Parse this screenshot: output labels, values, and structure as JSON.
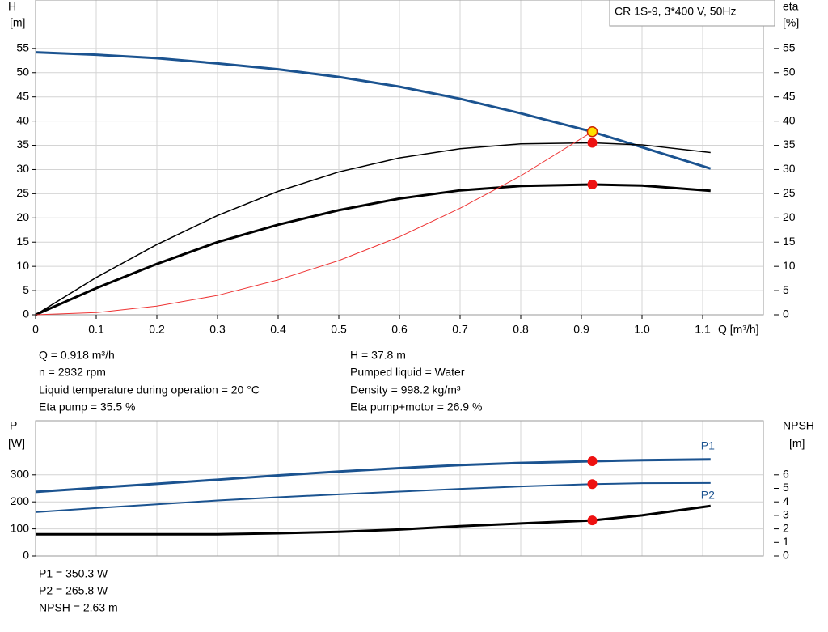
{
  "chart_data": [
    {
      "type": "line",
      "title": "CR 1S-9, 3*400 V, 50Hz",
      "y_label": [
        "H",
        "[m]"
      ],
      "y2_label": [
        "eta",
        "[%]"
      ],
      "x_label": "Q [m³/h]",
      "xlim": [
        0,
        1.2
      ],
      "xticks": [
        0,
        0.1,
        0.2,
        0.3,
        0.4,
        0.5,
        0.6,
        0.7,
        0.8,
        0.9,
        {
          "value": 1.0,
          "label": "1.0"
        },
        1.1
      ],
      "ylim": [
        0,
        65
      ],
      "yticks": [
        0,
        5,
        10,
        15,
        20,
        25,
        30,
        35,
        40,
        45,
        50,
        55
      ],
      "y2lim": [
        0,
        65
      ],
      "y2ticks": [
        0,
        5,
        10,
        15,
        20,
        25,
        30,
        35,
        40,
        45,
        50,
        55
      ],
      "grid": true,
      "duty_x": 0.918,
      "series": [
        {
          "color": "#1b5390",
          "line_width": 3,
          "marker_color": "#ffe000",
          "x": [
            0,
            0.1,
            0.2,
            0.3,
            0.4,
            0.5,
            0.6,
            0.7,
            0.8,
            0.918,
            1.0,
            1.113
          ],
          "values": [
            54.2,
            53.7,
            53,
            51.9,
            50.7,
            49.1,
            47.1,
            44.6,
            41.6,
            37.8,
            34.6,
            30.2
          ]
        },
        {
          "color": "#000000",
          "line_width": 1.5,
          "axis": "y2",
          "marker_color": "#ee1111",
          "x": [
            0,
            0.1,
            0.2,
            0.3,
            0.4,
            0.5,
            0.6,
            0.7,
            0.8,
            0.918,
            1.0,
            1.113
          ],
          "values": [
            0,
            7.7,
            14.5,
            20.5,
            25.5,
            29.5,
            32.4,
            34.3,
            35.3,
            35.5,
            35.1,
            33.5
          ]
        },
        {
          "color": "#000000",
          "line_width": 3,
          "axis": "y2",
          "marker_color": "#ee1111",
          "x": [
            0,
            0.1,
            0.2,
            0.3,
            0.4,
            0.5,
            0.6,
            0.7,
            0.8,
            0.918,
            1.0,
            1.113
          ],
          "values": [
            0,
            5.5,
            10.5,
            15,
            18.6,
            21.6,
            24,
            25.7,
            26.6,
            26.9,
            26.7,
            25.6
          ]
        },
        {
          "color": "#ee3333",
          "line_width": 1,
          "x": [
            0,
            0.1,
            0.2,
            0.3,
            0.4,
            0.5,
            0.6,
            0.7,
            0.8,
            0.918
          ],
          "values": [
            0,
            0.45,
            1.8,
            4,
            7.2,
            11.2,
            16.1,
            22,
            28.7,
            37.8
          ]
        }
      ]
    },
    {
      "type": "line",
      "y_label": [
        "P",
        "[W]"
      ],
      "y2_label": [
        "NPSH",
        "[m]"
      ],
      "xlim": [
        0,
        1.2
      ],
      "ylim": [
        0,
        500
      ],
      "yticks": [
        0,
        100,
        200,
        300
      ],
      "y2lim": [
        0,
        10
      ],
      "y2ticks": [
        0,
        1,
        2,
        3,
        4,
        5,
        6
      ],
      "grid": true,
      "duty_x": 0.918,
      "series": [
        {
          "name": "P1",
          "label_pos": "above",
          "color": "#1b5390",
          "line_width": 3,
          "marker_color": "#ee1111",
          "x": [
            0,
            0.1,
            0.2,
            0.3,
            0.4,
            0.5,
            0.6,
            0.7,
            0.8,
            0.918,
            1.0,
            1.113
          ],
          "values": [
            237,
            252,
            267,
            282,
            298,
            312,
            325,
            336,
            344,
            350.3,
            354,
            357
          ]
        },
        {
          "name": "P2",
          "label_pos": "below",
          "color": "#1b5390",
          "line_width": 2,
          "marker_color": "#ee1111",
          "x": [
            0,
            0.1,
            0.2,
            0.3,
            0.4,
            0.5,
            0.6,
            0.7,
            0.8,
            0.918,
            1.0,
            1.113
          ],
          "values": [
            162,
            177,
            191,
            205,
            217,
            228,
            238,
            248,
            257,
            265.8,
            269,
            270
          ]
        },
        {
          "color": "#000000",
          "line_width": 3,
          "axis": "y2",
          "marker_color": "#ee1111",
          "x": [
            0,
            0.3,
            0.4,
            0.5,
            0.6,
            0.7,
            0.8,
            0.918,
            1.0,
            1.113
          ],
          "values": [
            1.6,
            1.6,
            1.68,
            1.78,
            1.95,
            2.2,
            2.4,
            2.63,
            3.0,
            3.7
          ]
        }
      ]
    }
  ],
  "operating_info": {
    "left": [
      "Q = 0.918 m³/h",
      "n = 2932 rpm",
      "Liquid temperature during operation = 20 °C",
      "Eta pump = 35.5 %"
    ],
    "right": [
      "H = 37.8 m",
      "Pumped liquid = Water",
      "Density = 998.2 kg/m³",
      "Eta pump+motor = 26.9 %"
    ]
  },
  "power_info": [
    "P1 = 350.3 W",
    "P2 = 265.8 W",
    "NPSH = 2.63 m"
  ]
}
